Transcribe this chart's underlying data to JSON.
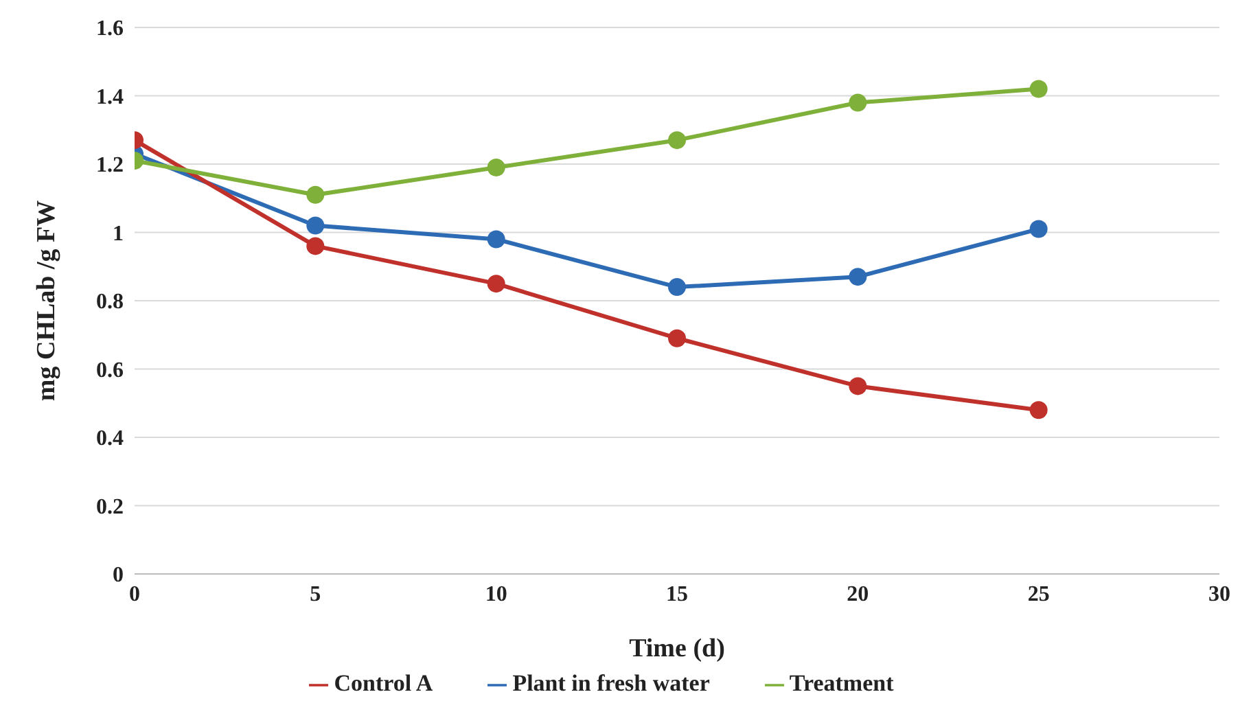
{
  "chart_data": {
    "type": "line",
    "xlabel": "Time  (d)",
    "ylabel": "mg CHLab /g FW",
    "x": [
      0,
      5,
      10,
      15,
      20,
      25
    ],
    "series": [
      {
        "name": "Plant in fresh water",
        "color": "#2e6bb5",
        "values": [
          1.23,
          1.02,
          0.98,
          0.84,
          0.87,
          1.01
        ]
      },
      {
        "name": "Control A",
        "color": "#c0312b",
        "values": [
          1.27,
          0.96,
          0.85,
          0.69,
          0.55,
          0.48
        ]
      },
      {
        "name": "Treatment",
        "color": "#7fb13a",
        "values": [
          1.21,
          1.11,
          1.19,
          1.27,
          1.38,
          1.42
        ]
      }
    ],
    "xlim": [
      0,
      30
    ],
    "xticks": [
      0,
      5,
      10,
      15,
      20,
      25,
      30
    ],
    "ylim": [
      0,
      1.6
    ],
    "yticks": [
      0,
      0.2,
      0.4,
      0.6,
      0.8,
      1,
      1.2,
      1.4,
      1.6
    ],
    "grid": "y",
    "legend": "bottom",
    "marker": "circle",
    "line_style": "solid"
  }
}
